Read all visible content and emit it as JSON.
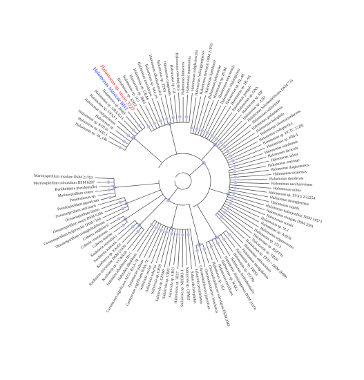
{
  "tree": {
    "leaves": [
      {
        "label": "Halomonas sp. 34_14b"
      },
      {
        "label": "Halomonas sp. HAL1"
      },
      {
        "label": "Halomonas sp. KO116"
      },
      {
        "label": "Halomonas sp."
      },
      {
        "label": "Halomonas campaniensis"
      },
      {
        "label": "Halomonas sp. GFAJ-1"
      },
      {
        "label": "Halomonas sp. URA3513"
      },
      {
        "label": "Halomonas sp. BMH"
      },
      {
        "label": "Halomonas titanicae BH1",
        "color": "#2233dd"
      },
      {
        "label": "Halomonas sp. strain 3727",
        "color": "#ee2222"
      },
      {
        "label": "Halomonas sp. A3H3"
      },
      {
        "label": "Halomonas sp. 1C1"
      },
      {
        "label": "Halomonas sp. JB63"
      },
      {
        "label": "Halomonas sp. GRA6"
      },
      {
        "label": "Halomonas zincidurans"
      },
      {
        "label": "Halomonas sp. lake_ex"
      },
      {
        "label": "Halomonas alkaliantarctica"
      },
      {
        "label": "Halomonas sp. TD01"
      },
      {
        "label": "Halomonas campisalis"
      },
      {
        "label": "Halomonas sp. C4"
      },
      {
        "label": "Halomonas caseinilytica"
      },
      {
        "label": "Halomonas lutescens"
      },
      {
        "label": "Halomonas aquamarina"
      },
      {
        "label": "Halomonas subglaciescola"
      },
      {
        "label": "Halomonas heilongjiangensis"
      },
      {
        "label": "Halomonas stevensii DSM 21076"
      },
      {
        "label": "Halomonas hamiltonii"
      },
      {
        "label": "Halomonas johnsoniae"
      },
      {
        "label": "Halomonas sp. BC04"
      },
      {
        "label": "Halomonas smyrnensis"
      },
      {
        "label": "Halomonas xinjiangensis"
      },
      {
        "label": "Halomonas sp. HL-48"
      },
      {
        "label": "Halomonas sp. HL-93"
      },
      {
        "label": "Halomonas jeotgali"
      },
      {
        "label": "Halomonas sp. GNS"
      },
      {
        "label": "Halomonas sp. MP"
      },
      {
        "label": "Halomonas sp. A3D"
      },
      {
        "label": "Halomonas halodenitrificans DSM 735"
      },
      {
        "label": "Halomonas salifodinae"
      },
      {
        "label": "Halomonas gudaonensis"
      },
      {
        "label": "Halomonas halophila"
      },
      {
        "label": "Halomonas chromatireducens"
      },
      {
        "label": "Halomonas endophytica"
      },
      {
        "label": "Halomonas sp. KCTC 22281"
      },
      {
        "label": "Halomonas sp. KM-1"
      },
      {
        "label": "Halomonas xianhensis"
      },
      {
        "label": "Halomonas ilicicola"
      },
      {
        "label": "Halomonas salina"
      },
      {
        "label": "Halomonas ventosae"
      },
      {
        "label": "Halomonas daqiaonensis"
      },
      {
        "label": "Halomonas sinaiensis"
      },
      {
        "label": "Halomonas desiderata"
      },
      {
        "label": "Halomonas saccharevitans"
      },
      {
        "label": "Halomonas sulina"
      },
      {
        "label": "Halomonas sp. SYSU Z22254"
      },
      {
        "label": "Halomonas huangheensis"
      },
      {
        "label": "Halomonas cupida"
      },
      {
        "label": "Halomonas halocynthiae DSM 14573"
      },
      {
        "label": "Halomonas elongata DSM 2581"
      },
      {
        "label": "Halomonas coralii"
      },
      {
        "label": "Halomonas sp. SL1"
      },
      {
        "label": "Halomonas sp. AAD6"
      },
      {
        "label": "Halomonas organivorans"
      },
      {
        "label": "Halomonas sp. 1513"
      },
      {
        "label": "Halomonas sp. R5PT01"
      },
      {
        "label": "Halomonas sp. TBZ9"
      },
      {
        "label": "Halomonas sp. FP35 = DSM 26886"
      },
      {
        "label": "Halomonas anticariensis"
      },
      {
        "label": "Halomonas mongoliensis"
      },
      {
        "label": "Halomonas sp. PBN3"
      },
      {
        "label": "Halomonas sp. TG39a"
      },
      {
        "label": "Halomonas hydrothermalis"
      },
      {
        "label": "Halomonas zhanjiangensis DSM 21076"
      },
      {
        "label": "Halomonas sp. HAK1"
      },
      {
        "label": "Halomonas meridiana"
      },
      {
        "label": "Halomonas sp. 1E4"
      },
      {
        "label": "Chromohalobacter salexigens DSM 3043"
      },
      {
        "label": "Chromohalobacter israelensis"
      },
      {
        "label": "Chromohalobacter japonicus"
      },
      {
        "label": "Salinicola peritrichatus"
      },
      {
        "label": "Salinicola halophilus"
      },
      {
        "label": "Salinicola sp. CPA62"
      },
      {
        "label": "Salinicola sp. MH3R3-1"
      },
      {
        "label": "Halomonas sp. 3R57"
      },
      {
        "label": "Salinicola sp. CR57"
      },
      {
        "label": "Salinicola sp. CR45"
      },
      {
        "label": "Salinicola sp. CPA60"
      },
      {
        "label": "Salinicola sp. CR59"
      },
      {
        "label": "Salinicola salarius"
      },
      {
        "label": "Salinicola socius"
      },
      {
        "label": "Carnimonas nigrificans BAA-78"
      },
      {
        "label": "Zymobacter palmae"
      },
      {
        "label": "Carnimonas nigrificans ATCC BAA-78"
      },
      {
        "label": "Halotalea alkalilenta"
      },
      {
        "label": "Halotalea alkalilenta IH-1"
      },
      {
        "label": "Kushneria sp. YCWA18"
      },
      {
        "label": "Kushneria avicenniae DSM 23439"
      },
      {
        "label": "Kushneria sp. EAo01"
      },
      {
        "label": "Kushneria konosiri"
      },
      {
        "label": "Kushneria marisflavi"
      },
      {
        "label": "Cobetia marina"
      },
      {
        "label": "Cobetia crustatorum"
      },
      {
        "label": "Cobetia amphilecti"
      },
      {
        "label": "Oceanospirillum multiglobuliferum"
      },
      {
        "label": "Oceanospirillum beijerinckii DSM 7166"
      },
      {
        "label": "Oceanospirillum maris DSM 6286"
      },
      {
        "label": "Oceanospirillum linum"
      },
      {
        "label": "Oceanospirillum sanctuarii"
      },
      {
        "label": "Pseudospirillum japonicum"
      },
      {
        "label": "Pseudomonas sp."
      },
      {
        "label": "Marinospirillum celere"
      },
      {
        "label": "Burkholderia pseudomallei"
      },
      {
        "label": "Marinospirillum minutulum DSM 6287"
      },
      {
        "label": "Marinospirillum insulare DSM 21763"
      }
    ]
  }
}
